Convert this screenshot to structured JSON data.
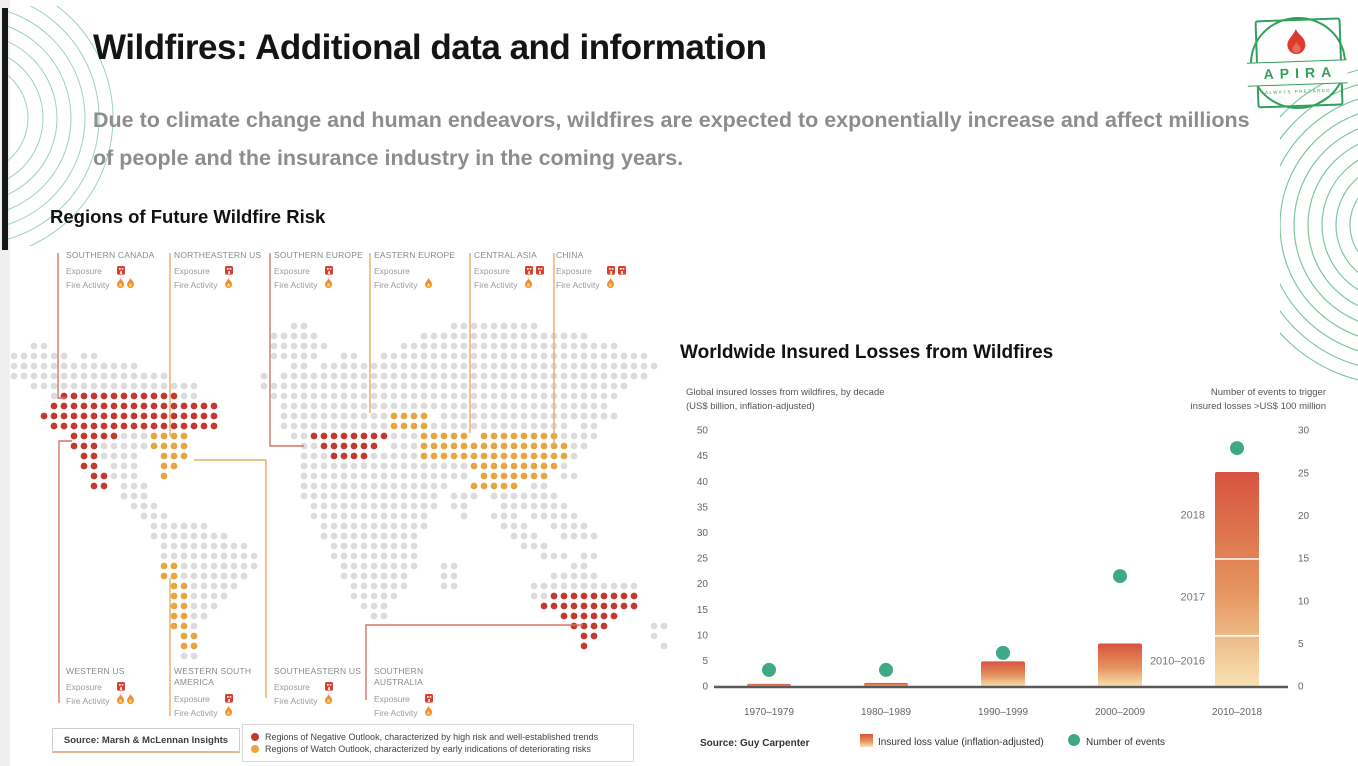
{
  "page": {
    "title": "Wildfires: Additional data and information",
    "subtitle": "Due to climate change and human endeavors, wildfires are expected to exponentially increase and affect millions of people and the insurance industry in the coming years."
  },
  "logo": {
    "name": "APIRA",
    "tagline": "ALWAYS PREPARED"
  },
  "map": {
    "heading": "Regions of Future Wildfire Risk",
    "source": "Source: Marsh & McLennan Insights",
    "exposure_label": "Exposure",
    "fire_label": "Fire Activity",
    "legend": [
      {
        "color": "#c4392e",
        "label": "Regions of Negative Outlook, characterized by high risk and well-established trends"
      },
      {
        "color": "#e8a43e",
        "label": "Regions of Watch Outlook, characterized by early indications of deteriorating risks"
      }
    ],
    "regions": [
      {
        "id": "southern-canada",
        "name": "SOUTHERN CANADA",
        "exposure": 1,
        "fire": 2
      },
      {
        "id": "northeastern-us",
        "name": "NORTHEASTERN US",
        "exposure": 1,
        "fire": 1
      },
      {
        "id": "southern-europe",
        "name": "SOUTHERN EUROPE",
        "exposure": 1,
        "fire": 1
      },
      {
        "id": "eastern-europe",
        "name": "EASTERN EUROPE",
        "exposure": 0,
        "fire": 1
      },
      {
        "id": "central-asia",
        "name": "CENTRAL ASIA",
        "exposure": 2,
        "fire": 1
      },
      {
        "id": "china",
        "name": "CHINA",
        "exposure": 2,
        "fire": 1
      },
      {
        "id": "western-us",
        "name": "WESTERN US",
        "exposure": 1,
        "fire": 2
      },
      {
        "id": "western-south-america",
        "name": "WESTERN SOUTH AMERICA",
        "exposure": 1,
        "fire": 1
      },
      {
        "id": "southeastern-us",
        "name": "SOUTHEASTERN US",
        "exposure": 1,
        "fire": 1
      },
      {
        "id": "southern-australia",
        "name": "SOUTHERN AUSTRALIA",
        "exposure": 1,
        "fire": 1
      }
    ],
    "colors": {
      "r": "#c4392e",
      "o": "#e8a43e",
      "g": "#dcdcdc"
    },
    "dot_grid": [
      "............................gg..............ggggggggg..............",
      "..........................ggggg..........ggggggggggggggggg.........",
      "..gg......................gggggg.......gggggggggggggggggggggg......",
      "gggggg.gg.................ggggg..gg..ggggggggggggggggggggggggggg...",
      "ggggggggggggg...............gg.gggggggggggggggggggggggggggggggggg..",
      "gggggggggggggggg.........g.ggggggggggggggggggggggggggggggggggggg...",
      "..ggggggggggggggggg......ggggggggggggggggggggggggggggggggggggg.....",
      "....grrrrrrrrrrrrgg.......ggggggggggggggggggggggggggggggggggg......",
      "....rrrrrrrrrrrrrrrrr......ggggggggggggggggggggggggggggggggg.......",
      "...rrrrrrrrrrrrrrrrrr......gggggggggggoooo.gggggggggggggggggg......",
      "....rrrrrrrrrrrrrrrrr......gggggggggggoooogggggggggggggg.gg........",
      "......rrrrrgggoooo..........ggrrrrrrrrgggooooo.oooooooogggg........",
      "......rrrgggggoooo...........ggrrrrrr.gggooooooooooooooogg.........",
      ".......rrgggg..ooo...........gggrrrrgggggooooooooooooooog..........",
      ".......rr.ggg..oo............gggggggggggggggggooooooooog...........",
      "........rrggg..o.............ggggggggggggggggg.ooooooo.gg..........",
      "........rr.ggg...............ggggggggggggggg..ooooo.gg..............",
      "...........ggg...............gggggggggggggg.ggg.ggggggg............",
      "............ggg...............ggggggggggggg.gg...ggggggg...........",
      ".............ggg..............gggggggggggg...g..ggg.ggggg..........",
      "..............gggggg...........ggggggggggg.......ggg..gggg.........",
      "..............gggggggg.........gggggggggg.........ggg..gggg........",
      "...............ggggggggg........ggggggggg..........ggg.............",
      "...............gggggggggg.......ggggggggg............ggg.gg........",
      "...............oogggggggg........gggggggg..gg...........gg.........",
      "...............ooggggggg.........ggggggg...gg.........ggggg........",
      "................ooggggg...........gggggg...gg.......ggggggggggg....",
      "................oogggg............ggggg.............ggrrrrrrrrr....",
      "................ooggg..............ggg...............rrrrrrrrrr....",
      "................oogg................gg.................rrrrrr......",
      "................oog.....................................rrrr....gg.",
      ".................oo......................................rr.....g..",
      ".................oo......................................r.......g.",
      ".................gg................................................"
    ]
  },
  "chart_data": {
    "type": "bar",
    "title": "Worldwide Insured Losses from Wildfires",
    "categories": [
      "1970–1979",
      "1980–1989",
      "1990–1999",
      "2000–2009",
      "2010–2018"
    ],
    "series": [
      {
        "name": "Insured loss value (inflation-adjusted)",
        "type": "bar",
        "axis": "left",
        "values": [
          0.6,
          0.8,
          5,
          8.5,
          42
        ]
      },
      {
        "name": "Number of events",
        "type": "scatter",
        "axis": "right",
        "values": [
          2,
          2,
          4,
          13,
          28
        ]
      }
    ],
    "stacked_final_bar": [
      {
        "label": "2010–2016",
        "value": 10
      },
      {
        "label": "2017",
        "value": 15
      },
      {
        "label": "2018",
        "value": 17
      }
    ],
    "left_axis": {
      "label_lines": [
        "Global insured losses from wildfires, by decade",
        "(US$ billion, inflation-adjusted)"
      ],
      "min": 0,
      "max": 50,
      "step": 5
    },
    "right_axis": {
      "label_lines": [
        "Number of events to trigger",
        "insured losses >US$ 100 million"
      ],
      "min": 0,
      "max": 30,
      "step": 5
    },
    "source": "Source: Guy Carpenter",
    "legend_position": "bottom",
    "grid": false,
    "colors": {
      "bar_top": "#d8533f",
      "bar_mid": "#e4945f",
      "bar_bottom": "#f8e3b4",
      "dot": "#3da989",
      "axis": "#595959",
      "tick_text": "#666666"
    }
  }
}
